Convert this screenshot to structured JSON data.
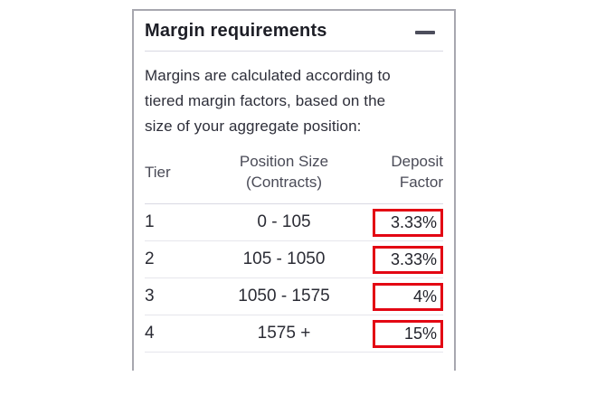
{
  "panel": {
    "title": "Margin requirements",
    "collapse_control": {
      "icon": "minus-icon",
      "state": "expanded"
    },
    "description_lines": [
      "Margins are calculated according to",
      "tiered margin factors, based on the",
      "size of your aggregate position:"
    ],
    "table": {
      "columns": {
        "tier": "Tier",
        "position_size": [
          "Position Size",
          "(Contracts)"
        ],
        "deposit_factor": [
          "Deposit",
          "Factor"
        ]
      },
      "rows": [
        {
          "tier": "1",
          "position_size": "0 - 105",
          "deposit_factor": "3.33%",
          "highlighted": true
        },
        {
          "tier": "2",
          "position_size": "105 - 1050",
          "deposit_factor": "3.33%",
          "highlighted": true
        },
        {
          "tier": "3",
          "position_size": "1050 - 1575",
          "deposit_factor": "4%",
          "highlighted": true
        },
        {
          "tier": "4",
          "position_size": "1575 +",
          "deposit_factor": "15%",
          "highlighted": true
        }
      ]
    },
    "colors": {
      "highlight_box_red": "#e30613",
      "panel_border": "#a7a7af",
      "title_text": "#1d1e26",
      "body_text": "#2e2f3a",
      "header_divider": "#d9d9e3",
      "row_divider": "#e6e6ec"
    }
  }
}
